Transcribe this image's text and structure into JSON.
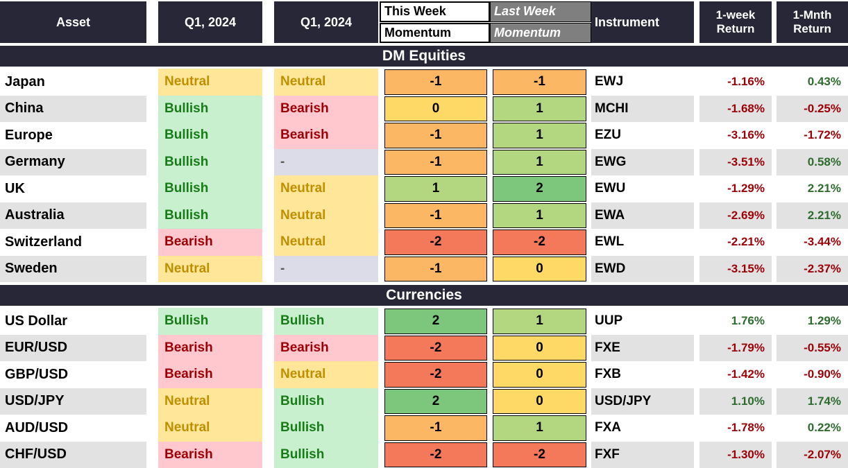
{
  "table": {
    "header": {
      "asset": "Asset",
      "q1_col1": "Q1, 2024",
      "q1_col2": "Q1, 2024",
      "this_week": [
        "This Week",
        "Momentum"
      ],
      "last_week": [
        "Last Week",
        "Momentum"
      ],
      "instrument": "Instrument",
      "week_return": [
        "1-week",
        "Return"
      ],
      "month_return": [
        "1-Mnth",
        "Return"
      ]
    }
  },
  "chart_data": {
    "type": "table",
    "columns": [
      "Asset",
      "Q1, 2024",
      "Q1, 2024",
      "This Week Momentum",
      "Last Week Momentum",
      "Instrument",
      "1-week Return",
      "1-Mnth Return"
    ],
    "sections": [
      {
        "title": "DM Equities",
        "rows": [
          {
            "asset": "Japan",
            "q1_2024_a": "Neutral",
            "q1_2024_b": "Neutral",
            "this_week_momentum": -1,
            "last_week_momentum": -1,
            "instrument": "EWJ",
            "week_return": "-1.16%",
            "month_return": "0.43%"
          },
          {
            "asset": "China",
            "q1_2024_a": "Bullish",
            "q1_2024_b": "Bearish",
            "this_week_momentum": 0,
            "last_week_momentum": 1,
            "instrument": "MCHI",
            "week_return": "-1.68%",
            "month_return": "-0.25%"
          },
          {
            "asset": "Europe",
            "q1_2024_a": "Bullish",
            "q1_2024_b": "Bearish",
            "this_week_momentum": -1,
            "last_week_momentum": 1,
            "instrument": "EZU",
            "week_return": "-3.16%",
            "month_return": "-1.72%"
          },
          {
            "asset": "Germany",
            "q1_2024_a": "Bullish",
            "q1_2024_b": "-",
            "this_week_momentum": -1,
            "last_week_momentum": 1,
            "instrument": "EWG",
            "week_return": "-3.51%",
            "month_return": "0.58%"
          },
          {
            "asset": "UK",
            "q1_2024_a": "Bullish",
            "q1_2024_b": "Neutral",
            "this_week_momentum": 1,
            "last_week_momentum": 2,
            "instrument": "EWU",
            "week_return": "-1.29%",
            "month_return": "2.21%"
          },
          {
            "asset": "Australia",
            "q1_2024_a": "Bullish",
            "q1_2024_b": "Neutral",
            "this_week_momentum": -1,
            "last_week_momentum": 1,
            "instrument": "EWA",
            "week_return": "-2.69%",
            "month_return": "2.21%"
          },
          {
            "asset": "Switzerland",
            "q1_2024_a": "Bearish",
            "q1_2024_b": "Neutral",
            "this_week_momentum": -2,
            "last_week_momentum": -2,
            "instrument": "EWL",
            "week_return": "-2.21%",
            "month_return": "-3.44%"
          },
          {
            "asset": "Sweden",
            "q1_2024_a": "Neutral",
            "q1_2024_b": "-",
            "this_week_momentum": -1,
            "last_week_momentum": 0,
            "instrument": "EWD",
            "week_return": "-3.15%",
            "month_return": "-2.37%"
          }
        ]
      },
      {
        "title": "Currencies",
        "rows": [
          {
            "asset": "US Dollar",
            "q1_2024_a": "Bullish",
            "q1_2024_b": "Bullish",
            "this_week_momentum": 2,
            "last_week_momentum": 1,
            "instrument": "UUP",
            "week_return": "1.76%",
            "month_return": "1.29%"
          },
          {
            "asset": "EUR/USD",
            "q1_2024_a": "Bearish",
            "q1_2024_b": "Bearish",
            "this_week_momentum": -2,
            "last_week_momentum": 0,
            "instrument": "FXE",
            "week_return": "-1.79%",
            "month_return": "-0.55%"
          },
          {
            "asset": "GBP/USD",
            "q1_2024_a": "Bearish",
            "q1_2024_b": "Neutral",
            "this_week_momentum": -2,
            "last_week_momentum": 0,
            "instrument": "FXB",
            "week_return": "-1.42%",
            "month_return": "-0.90%"
          },
          {
            "asset": "USD/JPY",
            "q1_2024_a": "Neutral",
            "q1_2024_b": "Bullish",
            "this_week_momentum": 2,
            "last_week_momentum": 0,
            "instrument": "USD/JPY",
            "week_return": "1.10%",
            "month_return": "1.74%"
          },
          {
            "asset": "AUD/USD",
            "q1_2024_a": "Neutral",
            "q1_2024_b": "Bullish",
            "this_week_momentum": -1,
            "last_week_momentum": 1,
            "instrument": "FXA",
            "week_return": "-1.78%",
            "month_return": "0.22%"
          },
          {
            "asset": "CHF/USD",
            "q1_2024_a": "Bearish",
            "q1_2024_b": "Bullish",
            "this_week_momentum": -2,
            "last_week_momentum": -2,
            "instrument": "FXF",
            "week_return": "-1.30%",
            "month_return": "-2.07%"
          }
        ]
      }
    ]
  },
  "colors": {
    "header_bg": "#272738",
    "header_text": "#ffffff",
    "stripe_row_bg": "#e2e2e2",
    "plain_row_bg": "#ffffff",
    "this_week_header_bg": "#ffffff",
    "last_week_header_bg": "#7f7f7f",
    "neutral_bg": "#ffe699",
    "neutral_text": "#bf8f00",
    "bullish_bg": "#c8efce",
    "bullish_text": "#177c17",
    "bearish_bg": "#ffc7ce",
    "bearish_text": "#9c0006",
    "na_bg": "#dcdce8",
    "na_text": "#595959",
    "momentum_scale": {
      "2": "#7cc77b",
      "1": "#b3d680",
      "0": "#ffd966",
      "-1": "#fbb763",
      "-2": "#f4785a"
    },
    "positive_return_text": "#2e6b2e",
    "negative_return_text": "#9c0006"
  }
}
